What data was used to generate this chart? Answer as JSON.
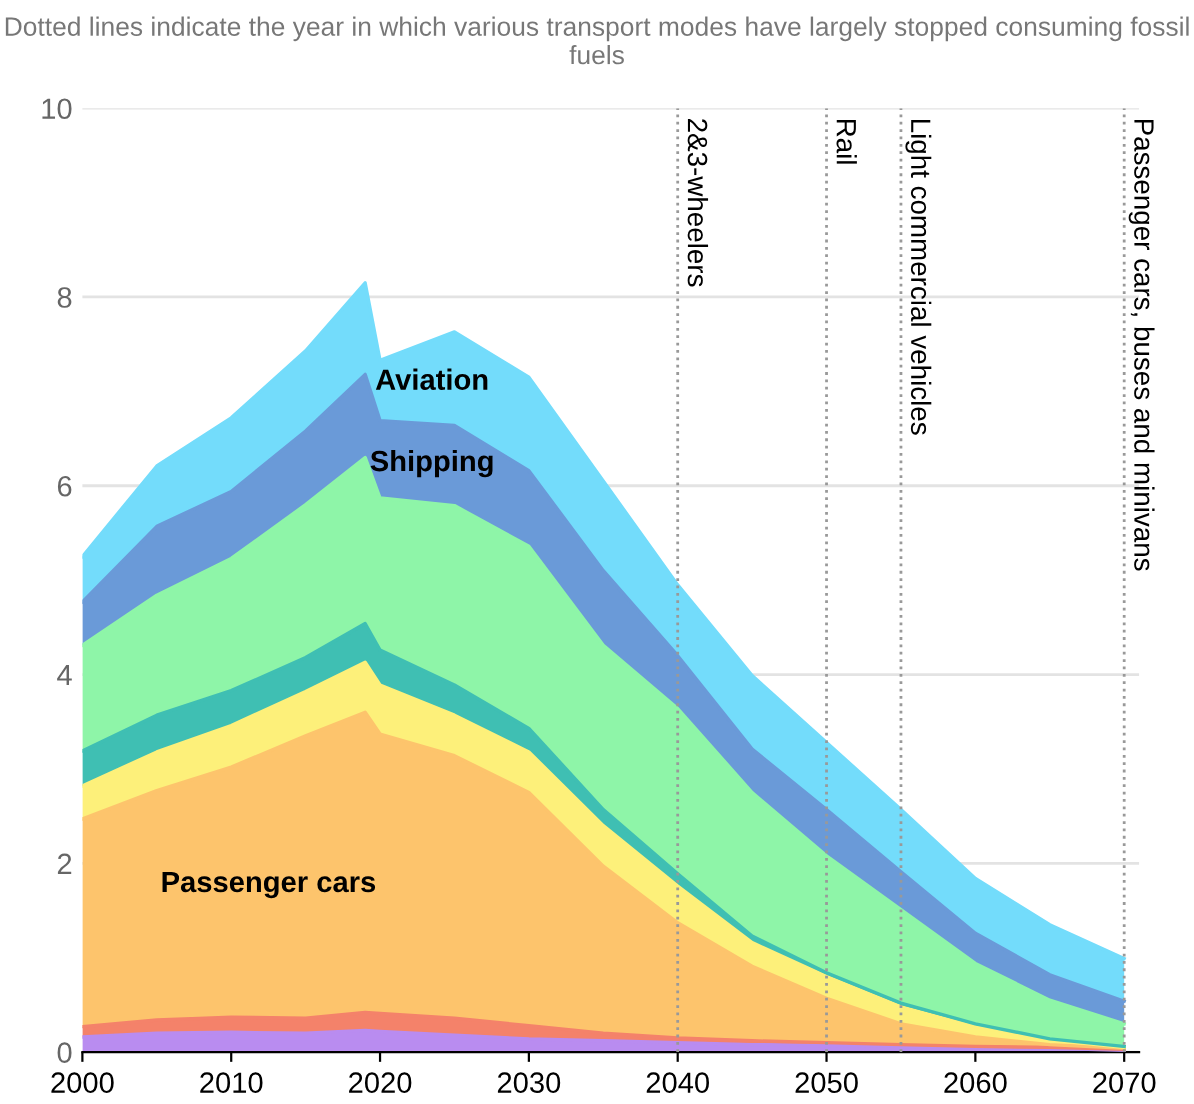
{
  "chart_data": {
    "type": "area",
    "stacked": true,
    "subtitle": "Dotted lines indicate the year in which various transport modes have largely stopped consuming fossil fuels",
    "x": [
      2000,
      2005,
      2010,
      2015,
      2019,
      2020,
      2025,
      2030,
      2035,
      2040,
      2045,
      2050,
      2055,
      2060,
      2065,
      2070
    ],
    "series": [
      {
        "color": "#b98cf0",
        "values": [
          0.16,
          0.2,
          0.21,
          0.2,
          0.23,
          0.22,
          0.18,
          0.14,
          0.12,
          0.1,
          0.08,
          0.07,
          0.06,
          0.05,
          0.04,
          0.02
        ]
      },
      {
        "color": "#f4826a",
        "values": [
          0.11,
          0.14,
          0.16,
          0.16,
          0.19,
          0.19,
          0.18,
          0.14,
          0.08,
          0.05,
          0.04,
          0.03,
          0.02,
          0.01,
          0.01,
          0.01
        ]
      },
      {
        "name": "Passenger cars",
        "color": "#fdc46c",
        "values": [
          2.2,
          2.43,
          2.65,
          2.99,
          3.18,
          2.96,
          2.78,
          2.47,
          1.77,
          1.22,
          0.79,
          0.47,
          0.22,
          0.1,
          0.03,
          0.01
        ]
      },
      {
        "color": "#fdf07a",
        "values": [
          0.35,
          0.41,
          0.44,
          0.47,
          0.53,
          0.52,
          0.43,
          0.43,
          0.43,
          0.39,
          0.25,
          0.23,
          0.18,
          0.11,
          0.05,
          0.01
        ]
      },
      {
        "color": "#3fbfb3",
        "values": [
          0.37,
          0.39,
          0.37,
          0.36,
          0.41,
          0.37,
          0.32,
          0.25,
          0.17,
          0.13,
          0.07,
          0.04,
          0.04,
          0.03,
          0.01,
          0.01
        ]
      },
      {
        "color": "#8ef5a8",
        "values": [
          1.12,
          1.27,
          1.4,
          1.62,
          1.76,
          1.61,
          1.9,
          1.93,
          1.74,
          1.75,
          1.52,
          1.24,
          0.99,
          0.64,
          0.41,
          0.24
        ]
      },
      {
        "name": "Shipping",
        "color": "#6a9ad8",
        "values": [
          0.46,
          0.73,
          0.71,
          0.78,
          0.88,
          0.82,
          0.85,
          0.8,
          0.79,
          0.56,
          0.46,
          0.49,
          0.4,
          0.32,
          0.27,
          0.24
        ]
      },
      {
        "name": "Aviation",
        "color": "#73dcfb",
        "values": [
          0.48,
          0.64,
          0.78,
          0.85,
          0.97,
          0.64,
          0.99,
          0.99,
          0.95,
          0.75,
          0.78,
          0.71,
          0.66,
          0.58,
          0.53,
          0.45
        ]
      }
    ],
    "xlim": [
      2000,
      2071
    ],
    "ylim": [
      0,
      10
    ],
    "xticks": [
      2000,
      2010,
      2020,
      2030,
      2040,
      2050,
      2060,
      2070
    ],
    "yticks": [
      0,
      2,
      4,
      6,
      8,
      10
    ],
    "grid": "y",
    "legend": false,
    "ref_lines": [
      {
        "axis": "x",
        "value": 2040,
        "label": "2&3-wheelers",
        "color": "#999999",
        "line_style": "dotted"
      },
      {
        "axis": "x",
        "value": 2050,
        "label": "Rail",
        "color": "#999999",
        "line_style": "dotted"
      },
      {
        "axis": "x",
        "value": 2055,
        "label": "Light commercial vehicles",
        "color": "#999999",
        "line_style": "dotted"
      },
      {
        "axis": "x",
        "value": 2070,
        "label": "Passenger cars, buses and minivans",
        "color": "#999999",
        "line_style": "dotted"
      }
    ]
  }
}
